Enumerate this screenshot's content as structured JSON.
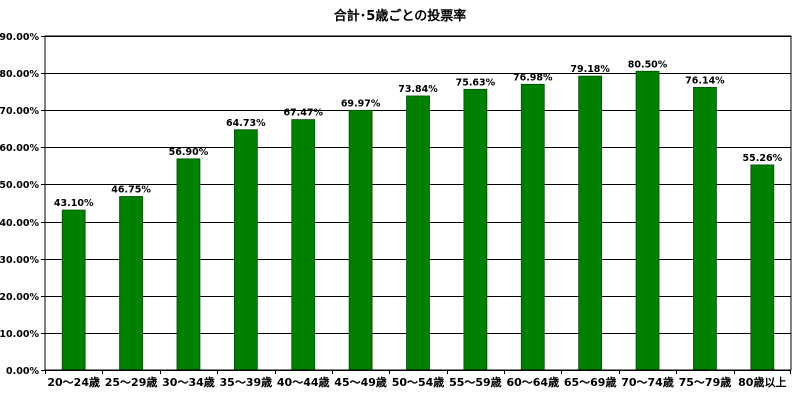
{
  "chart_data": {
    "type": "bar",
    "title": "合計･5歳ごとの投票率",
    "categories": [
      "20～24歳",
      "25～29歳",
      "30～34歳",
      "35～39歳",
      "40～44歳",
      "45～49歳",
      "50～54歳",
      "55～59歳",
      "60～64歳",
      "65～69歳",
      "70～74歳",
      "75～79歳",
      "80歳以上"
    ],
    "values": [
      43.1,
      46.75,
      56.9,
      64.73,
      67.47,
      69.97,
      73.84,
      75.63,
      76.98,
      79.18,
      80.5,
      76.14,
      55.26
    ],
    "value_labels": [
      "43.10%",
      "46.75%",
      "56.90%",
      "64.73%",
      "67.47%",
      "69.97%",
      "73.84%",
      "75.63%",
      "76.98%",
      "79.18%",
      "80.50%",
      "76.14%",
      "55.26%"
    ],
    "ylim": [
      0,
      90
    ],
    "yticks": [
      0,
      10,
      20,
      30,
      40,
      50,
      60,
      70,
      80,
      90
    ],
    "ytick_labels": [
      "0.00%",
      "10.00%",
      "20.00%",
      "30.00%",
      "40.00%",
      "50.00%",
      "60.00%",
      "70.00%",
      "80.00%",
      "90.00%"
    ],
    "grid": true,
    "legend": "none",
    "colors": {
      "bar": "#008000",
      "bar_edge": "#004d00",
      "grid": "#000000",
      "axis": "#000000"
    }
  }
}
